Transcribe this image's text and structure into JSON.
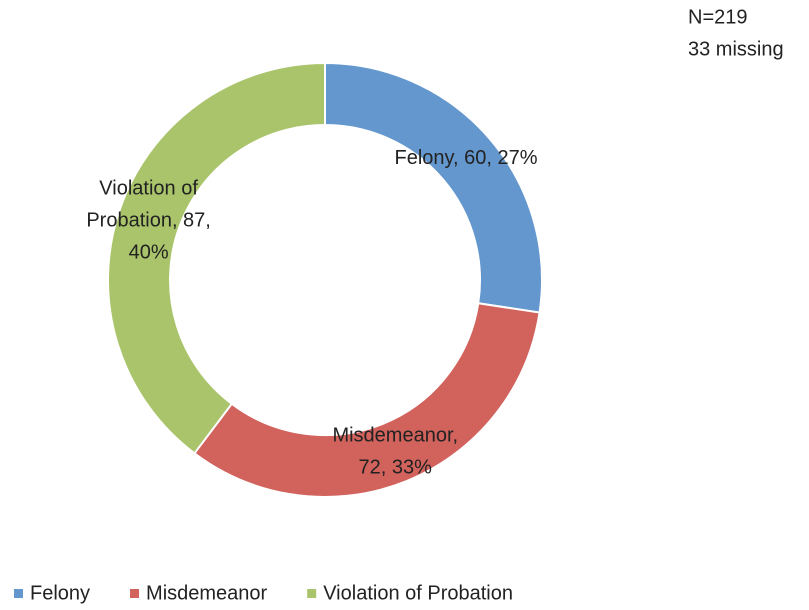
{
  "chart_data": {
    "type": "donut",
    "categories": [
      "Felony",
      "Misdemeanor",
      "Violation of Probation"
    ],
    "values": [
      60,
      72,
      87
    ],
    "value_labels": [
      [
        "Felony, 60, 27%"
      ],
      [
        "Misdemeanor,",
        "72, 33%"
      ],
      [
        "Violation of",
        "Probation, 87,",
        "40%"
      ]
    ],
    "colors": [
      "#6497cd",
      "#d1625c",
      "#a9c46a"
    ],
    "annotations": [
      "N=219",
      "33 missing"
    ],
    "legend": "bottom"
  }
}
